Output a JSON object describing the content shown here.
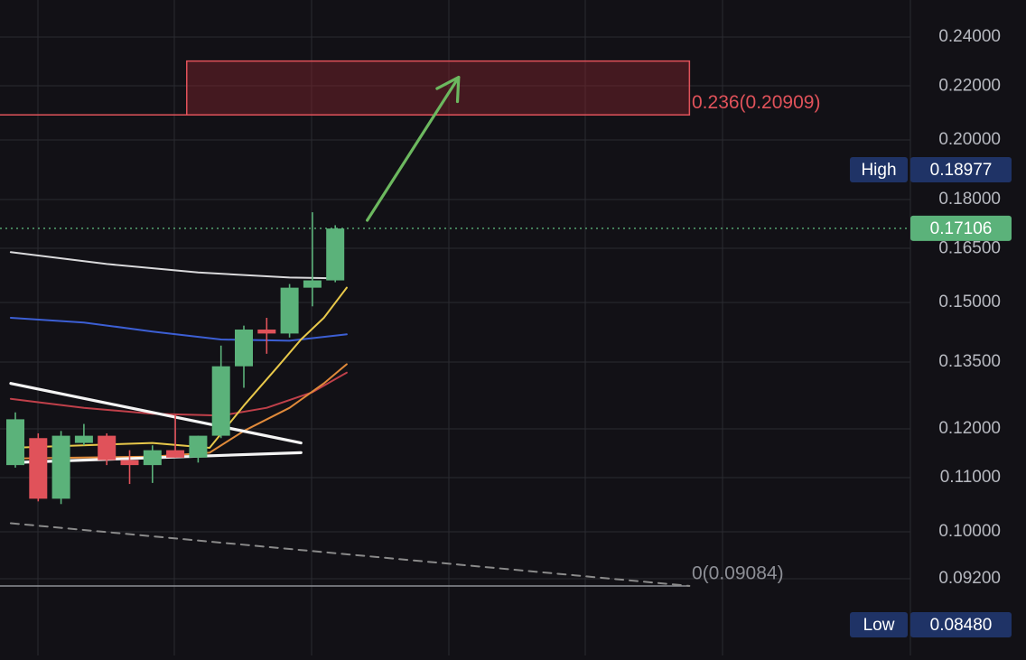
{
  "colors": {
    "background": "#121116",
    "grid": "#2a2a30",
    "bull": "#5bb27a",
    "bear": "#e0525a",
    "axis_text": "#b7b9c0",
    "fib": "#e0525a",
    "fib_zero": "#8d8f96",
    "arrow": "#6cb85f",
    "badge": "#1f3366",
    "ma_white": "#d9d9db",
    "ma_blue": "#3c5fd4",
    "ma_yellow": "#e8c84a",
    "ma_orange": "#e08a3a",
    "ma_red": "#c0404a",
    "trendline": "#f4f4f4",
    "dashed": "#8a8a8a"
  },
  "chart_data": {
    "type": "candlestick",
    "scale": "log",
    "y_range": [
      0.0848,
      0.245
    ],
    "y_ticks": [
      {
        "value": 0.24,
        "label": "0.24000"
      },
      {
        "value": 0.22,
        "label": "0.22000"
      },
      {
        "value": 0.2,
        "label": "0.20000"
      },
      {
        "value": 0.18,
        "label": "0.18000"
      },
      {
        "value": 0.165,
        "label": "0.16500"
      },
      {
        "value": 0.15,
        "label": "0.15000"
      },
      {
        "value": 0.135,
        "label": "0.13500"
      },
      {
        "value": 0.12,
        "label": "0.12000"
      },
      {
        "value": 0.11,
        "label": "0.11000"
      },
      {
        "value": 0.1,
        "label": "0.10000"
      },
      {
        "value": 0.092,
        "label": "0.09200"
      }
    ],
    "candles": [
      {
        "o": 0.1125,
        "h": 0.1235,
        "l": 0.112,
        "c": 0.122
      },
      {
        "o": 0.118,
        "h": 0.119,
        "l": 0.1055,
        "c": 0.106
      },
      {
        "o": 0.106,
        "h": 0.1195,
        "l": 0.105,
        "c": 0.1185
      },
      {
        "o": 0.117,
        "h": 0.121,
        "l": 0.1165,
        "c": 0.1185
      },
      {
        "o": 0.1185,
        "h": 0.119,
        "l": 0.1125,
        "c": 0.1135
      },
      {
        "o": 0.1135,
        "h": 0.1155,
        "l": 0.1088,
        "c": 0.1125
      },
      {
        "o": 0.1125,
        "h": 0.1165,
        "l": 0.109,
        "c": 0.1155
      },
      {
        "o": 0.1155,
        "h": 0.123,
        "l": 0.114,
        "c": 0.114
      },
      {
        "o": 0.114,
        "h": 0.1185,
        "l": 0.113,
        "c": 0.1185
      },
      {
        "o": 0.1185,
        "h": 0.139,
        "l": 0.118,
        "c": 0.134
      },
      {
        "o": 0.134,
        "h": 0.144,
        "l": 0.129,
        "c": 0.143
      },
      {
        "o": 0.143,
        "h": 0.146,
        "l": 0.137,
        "c": 0.142
      },
      {
        "o": 0.142,
        "h": 0.155,
        "l": 0.141,
        "c": 0.154
      },
      {
        "o": 0.154,
        "h": 0.176,
        "l": 0.149,
        "c": 0.156
      },
      {
        "o": 0.156,
        "h": 0.172,
        "l": 0.1555,
        "c": 0.171
      }
    ],
    "moving_averages": [
      {
        "key": "white",
        "points": [
          [
            -0.2,
            0.164
          ],
          [
            4,
            0.1606
          ],
          [
            8,
            0.1582
          ],
          [
            12,
            0.1568
          ],
          [
            14,
            0.1566
          ]
        ]
      },
      {
        "key": "blue",
        "points": [
          [
            -0.2,
            0.146
          ],
          [
            3,
            0.1448
          ],
          [
            6,
            0.1425
          ],
          [
            9,
            0.1405
          ],
          [
            12,
            0.1402
          ],
          [
            14.5,
            0.1418
          ]
        ]
      },
      {
        "key": "red",
        "points": [
          [
            -0.2,
            0.1265
          ],
          [
            3,
            0.1245
          ],
          [
            6,
            0.1232
          ],
          [
            9,
            0.1228
          ],
          [
            11,
            0.1245
          ],
          [
            13,
            0.128
          ],
          [
            14.5,
            0.1325
          ]
        ]
      },
      {
        "key": "orange",
        "points": [
          [
            -0.2,
            0.1138
          ],
          [
            6,
            0.1142
          ],
          [
            8.5,
            0.115
          ],
          [
            10,
            0.1195
          ],
          [
            12,
            0.1245
          ],
          [
            13.5,
            0.13
          ],
          [
            14.5,
            0.1345
          ]
        ]
      },
      {
        "key": "yellow",
        "points": [
          [
            -0.2,
            0.116
          ],
          [
            6,
            0.117
          ],
          [
            8.5,
            0.116
          ],
          [
            10,
            0.125
          ],
          [
            11.5,
            0.134
          ],
          [
            12.5,
            0.1405
          ],
          [
            13.5,
            0.146
          ],
          [
            14.5,
            0.154
          ]
        ]
      }
    ],
    "trendlines": [
      {
        "style": "solid",
        "from": [
          -0.2,
          0.13
        ],
        "to": [
          12.5,
          0.117
        ]
      },
      {
        "style": "solid",
        "from": [
          -0.2,
          0.113
        ],
        "to": [
          12.5,
          0.115
        ]
      },
      {
        "style": "dashed",
        "from": [
          -0.2,
          0.1015
        ],
        "to": [
          29.5,
          0.09084
        ]
      }
    ],
    "zone": {
      "x_start": 7.5,
      "x_end": 29.5,
      "y_low": 0.20909,
      "y_high": 0.23
    },
    "arrow": {
      "from": [
        15.4,
        0.1735
      ],
      "to": [
        19.4,
        0.2235
      ]
    },
    "levels": [
      {
        "value": 0.20909,
        "label": "0.236(0.20909)",
        "style": "fib"
      },
      {
        "value": 0.09084,
        "label": "0(0.09084)",
        "style": "fib_zero"
      }
    ],
    "current_price": {
      "value": 0.17106,
      "label": "0.17106"
    },
    "high": {
      "tag": "High",
      "value": 0.18977,
      "label": "0.18977"
    },
    "low": {
      "tag": "Low",
      "value": 0.0848,
      "label": "0.08480"
    }
  }
}
